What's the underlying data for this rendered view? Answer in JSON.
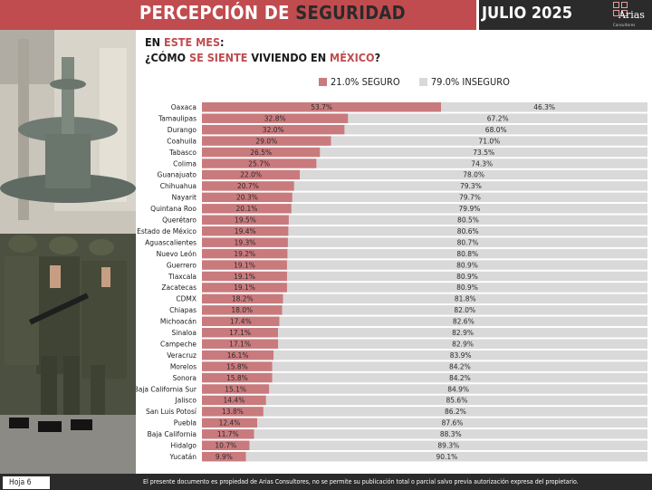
{
  "header": {
    "title_a": "PERCEPCIÓN DE ",
    "title_b": "SEGURIDAD",
    "date": "JULIO 2025",
    "logo_name": "Arias",
    "logo_sub": "Consultores"
  },
  "question": {
    "l1_a": "EN ",
    "l1_b": "ESTE MES",
    "l1_c": ":",
    "l2_a": "¿CÓMO ",
    "l2_b": "SE SIENTE",
    "l2_c": " VIVIENDO EN ",
    "l2_d": "MÉXICO",
    "l2_e": "?"
  },
  "legend": {
    "seguro": "21.0% SEGURO",
    "inseguro": "79.0% INSEGURO"
  },
  "colors": {
    "seguro": "#c97a7d",
    "inseguro": "#d9d9d9",
    "accent": "#c04c50",
    "dark": "#2b2b2b"
  },
  "chart_data": {
    "type": "bar",
    "orientation": "horizontal-stacked-100",
    "categories": [
      "Oaxaca",
      "Tamaulipas",
      "Durango",
      "Coahuila",
      "Tabasco",
      "Colima",
      "Guanajuato",
      "Chihuahua",
      "Nayarit",
      "Quintana Roo",
      "Querétaro",
      "Estado de México",
      "Aguascalientes",
      "Nuevo León",
      "Guerrero",
      "Tlaxcala",
      "Zacatecas",
      "CDMX",
      "Chiapas",
      "Michoacán",
      "Sinaloa",
      "Campeche",
      "Veracruz",
      "Morelos",
      "Sonora",
      "Baja California Sur",
      "Jalisco",
      "San Luis Potosí",
      "Puebla",
      "Baja California",
      "Hidalgo",
      "Yucatán"
    ],
    "series": [
      {
        "name": "SEGURO",
        "values": [
          53.7,
          32.8,
          32.0,
          29.0,
          26.5,
          25.7,
          22.0,
          20.7,
          20.3,
          20.1,
          19.5,
          19.4,
          19.3,
          19.2,
          19.1,
          19.1,
          19.1,
          18.2,
          18.0,
          17.4,
          17.1,
          17.1,
          16.1,
          15.8,
          15.8,
          15.1,
          14.4,
          13.8,
          12.4,
          11.7,
          10.7,
          9.9
        ]
      },
      {
        "name": "INSEGURO",
        "values": [
          46.3,
          67.2,
          68.0,
          71.0,
          73.5,
          74.3,
          78.0,
          79.3,
          79.7,
          79.9,
          80.5,
          80.6,
          80.7,
          80.8,
          80.9,
          80.9,
          80.9,
          81.8,
          82.0,
          82.6,
          82.9,
          82.9,
          83.9,
          84.2,
          84.2,
          84.9,
          85.6,
          86.2,
          87.6,
          88.3,
          89.3,
          90.1
        ]
      }
    ],
    "labels_seguro": [
      "53.7%",
      "32.8%",
      "32.0%",
      "29.0%",
      "26.5%",
      "25.7%",
      "22.0%",
      "20.7%",
      "20.3%",
      "20.1%",
      "19.5%",
      "19.4%",
      "19.3%",
      "19.2%",
      "19.1%",
      "19.1%",
      "19.1%",
      "18.2%",
      "18.0%",
      "17.4%",
      "17.1%",
      "17.1%",
      "16.1%",
      "15.8%",
      "15.8%",
      "15.1%",
      "14.4%",
      "13.8%",
      "12.4%",
      "11.7%",
      "10.7%",
      "9.9%"
    ],
    "labels_inseguro": [
      "46.3%",
      "67.2%",
      "68.0%",
      "71.0%",
      "73.5%",
      "74.3%",
      "78.0%",
      "79.3%",
      "79.7%",
      "79.9%",
      "80.5%",
      "80.6%",
      "80.7%",
      "80.8%",
      "80.9%",
      "80.9%",
      "80.9%",
      "81.8%",
      "82.0%",
      "82.6%",
      "82.9%",
      "82.9%",
      "83.9%",
      "84.2%",
      "84.2%",
      "84.9%",
      "85.6%",
      "86.2%",
      "87.6%",
      "88.3%",
      "89.3%",
      "90.1%"
    ],
    "xlim": [
      0,
      100
    ],
    "title": "",
    "xlabel": "",
    "ylabel": ""
  },
  "footer": {
    "page": "Hoja 6",
    "note": "El presente documento es propiedad de Arias Consultores, no se permite su publicación total o parcial salvo previa autorización expresa del propietario."
  }
}
